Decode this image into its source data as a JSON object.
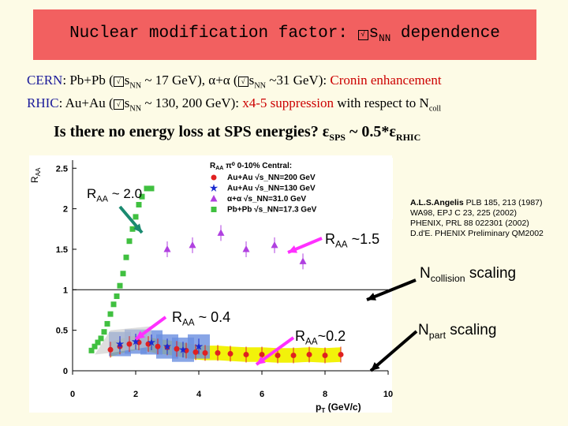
{
  "title": {
    "prefix": "Nuclear modification factor: ",
    "symbol": "√",
    "s": "s",
    "sub": "NN",
    "suffix": " dependence"
  },
  "line1": {
    "cern": "CERN",
    "a": ": Pb+Pb (",
    "s": "s",
    "sub1": "NN",
    "b": " ~ 17 GeV), α+α (",
    "sub2": "NN",
    "c": " ~31 GeV): ",
    "cronin": "Cronin enhancement"
  },
  "line2": {
    "rhic": "RHIC",
    "a": ": Au+Au (",
    "s": "s",
    "sub1": "NN",
    "b": " ~ 130, 200 GeV): ",
    "supp": "x4-5 suppression",
    "c": " with respect to N",
    "sub2": "coll"
  },
  "question": {
    "text": "Is there no energy loss at SPS energies?  ε",
    "sub1": "SPS",
    "mid": " ~ 0.5*ε",
    "sub2": "RHIC"
  },
  "legend": {
    "title": "R",
    "title_sub": "AA",
    "title_rest": " π⁰ 0-10% Central:",
    "entries": [
      {
        "text": "Au+Au √s_NN=200 GeV",
        "color": "#e02020",
        "marker": "circle"
      },
      {
        "text": "Au+Au √s_NN=130 GeV",
        "color": "#1a2bd0",
        "marker": "star"
      },
      {
        "text": "α+α √s_NN=31.0 GeV",
        "color": "#b040e0",
        "marker": "triangle"
      },
      {
        "text": "Pb+Pb √s_NN=17.3 GeV",
        "color": "#40c040",
        "marker": "square"
      }
    ]
  },
  "axes": {
    "ylabel": "R",
    "ylabel_sub": "AA",
    "xlabel": "p",
    "xlabel_sub": "T",
    "xlabel_unit": "(GeV/c)",
    "xticks": [
      "0",
      "2",
      "4",
      "6",
      "8",
      "10"
    ],
    "yticks": [
      "0",
      "0.5",
      "1",
      "1.5",
      "2",
      "2.5"
    ]
  },
  "annotations": {
    "a1": {
      "r": "R",
      "sub": "AA",
      "rest": " ~  2.0"
    },
    "a2": {
      "r": "R",
      "sub": "AA",
      "rest": " ~1.5"
    },
    "a3": {
      "r": "R",
      "sub": "AA",
      "rest": " ~  0.4"
    },
    "a4": {
      "r": "R",
      "sub": "AA",
      "rest": "~0.2"
    },
    "ncoll": {
      "n": "N",
      "sub": "collision",
      "rest": "  scaling"
    },
    "npart": {
      "n": "N",
      "sub": "part",
      "rest": "  scaling"
    }
  },
  "refs": [
    "A.L.S.Angelis PLB 185, 213 (1987)",
    "WA98, EPJ C 23, 225 (2002)",
    "PHENIX, PRL 88 022301 (2002)",
    "D.d'E. PHENIX Preliminary QM2002"
  ],
  "refs_bold": "A.L.S.Angelis",
  "colors": {
    "title_bg": "#f26060",
    "page_bg": "#fdfbe6",
    "band": "#f2f20a",
    "blue_band": "#6a8ee0",
    "arrow": "#ff30ff",
    "green_arrow": "#1a8a70"
  },
  "chart_data": {
    "type": "scatter",
    "xlim": [
      0,
      10
    ],
    "ylim": [
      0,
      2.6
    ],
    "ylabel": "RAA",
    "xlabel": "pT (GeV/c)",
    "series": [
      {
        "name": "Pb+Pb √s_NN=17.3 GeV",
        "marker": "square",
        "color": "#40c040",
        "x": [
          0.6,
          0.7,
          0.8,
          0.9,
          1.0,
          1.1,
          1.2,
          1.3,
          1.4,
          1.5,
          1.6,
          1.7,
          1.8,
          1.9,
          2.0,
          2.1,
          2.2,
          2.35,
          2.5
        ],
        "y": [
          0.25,
          0.3,
          0.35,
          0.4,
          0.48,
          0.58,
          0.7,
          0.82,
          0.92,
          1.05,
          1.2,
          1.4,
          1.6,
          1.75,
          1.9,
          2.05,
          2.15,
          2.25,
          2.25
        ]
      },
      {
        "name": "α+α √s_NN=31.0 GeV",
        "marker": "triangle",
        "color": "#b040e0",
        "x": [
          3.0,
          3.8,
          4.7,
          5.5,
          6.4,
          7.3
        ],
        "y": [
          1.5,
          1.55,
          1.7,
          1.5,
          1.55,
          1.35
        ]
      },
      {
        "name": "Au+Au √s_NN=200 GeV",
        "marker": "circle",
        "color": "#e02020",
        "x": [
          1.2,
          1.5,
          1.8,
          2.1,
          2.4,
          2.7,
          3.0,
          3.3,
          3.6,
          3.9,
          4.2,
          4.6,
          5.0,
          5.5,
          6.0,
          6.5,
          7.0,
          7.5,
          8.0,
          8.5
        ],
        "y": [
          0.26,
          0.3,
          0.33,
          0.35,
          0.33,
          0.3,
          0.29,
          0.27,
          0.25,
          0.23,
          0.22,
          0.22,
          0.21,
          0.2,
          0.2,
          0.19,
          0.19,
          0.2,
          0.19,
          0.2
        ]
      },
      {
        "name": "Au+Au √s_NN=130 GeV",
        "marker": "star",
        "color": "#1a2bd0",
        "x": [
          1.5,
          2.0,
          2.5,
          3.0,
          3.5,
          4.0
        ],
        "y": [
          0.33,
          0.36,
          0.35,
          0.3,
          0.26,
          0.3
        ]
      }
    ]
  }
}
